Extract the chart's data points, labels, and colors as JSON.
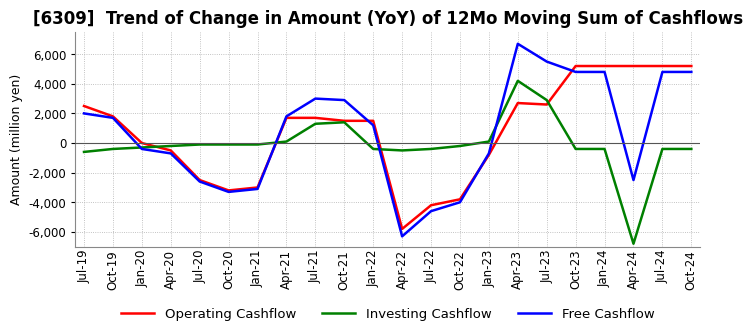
{
  "title": "[6309]  Trend of Change in Amount (YoY) of 12Mo Moving Sum of Cashflows",
  "ylabel": "Amount (million yen)",
  "ylim": [
    -7000,
    7500
  ],
  "yticks": [
    -6000,
    -4000,
    -2000,
    0,
    2000,
    4000,
    6000
  ],
  "x_labels": [
    "Jul-19",
    "Oct-19",
    "Jan-20",
    "Apr-20",
    "Jul-20",
    "Oct-20",
    "Jan-21",
    "Apr-21",
    "Jul-21",
    "Oct-21",
    "Jan-22",
    "Apr-22",
    "Jul-22",
    "Oct-22",
    "Jan-23",
    "Apr-23",
    "Jul-23",
    "Oct-23",
    "Jan-24",
    "Apr-24",
    "Jul-24",
    "Oct-24"
  ],
  "operating": [
    2500,
    1800,
    0,
    -500,
    -2500,
    -3200,
    -3000,
    1700,
    1700,
    1500,
    1500,
    -5800,
    -4200,
    -3800,
    -800,
    2700,
    2600,
    5200,
    5200,
    5200,
    5200,
    5200
  ],
  "investing": [
    -600,
    -400,
    -300,
    -200,
    -100,
    -100,
    -100,
    100,
    1300,
    1400,
    -400,
    -500,
    -400,
    -200,
    100,
    4200,
    2900,
    -400,
    -400,
    -6800,
    -400,
    -400
  ],
  "free": [
    2000,
    1700,
    -400,
    -700,
    -2600,
    -3300,
    -3100,
    1800,
    3000,
    2900,
    1200,
    -6300,
    -4600,
    -4000,
    -700,
    6700,
    5500,
    4800,
    4800,
    -2500,
    4800,
    4800
  ],
  "operating_color": "#ff0000",
  "investing_color": "#008000",
  "free_color": "#0000ff",
  "background_color": "#ffffff",
  "grid_color": "#b0b0b0",
  "title_fontsize": 12,
  "axis_fontsize": 8.5,
  "legend_fontsize": 9.5
}
